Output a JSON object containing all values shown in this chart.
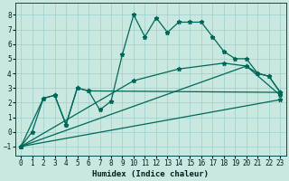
{
  "xlabel": "Humidex (Indice chaleur)",
  "bg_color": "#c8e8e0",
  "grid_color": "#9ecece",
  "line_color": "#006858",
  "xlim": [
    -0.5,
    23.5
  ],
  "ylim": [
    -1.6,
    8.8
  ],
  "xticks": [
    0,
    1,
    2,
    3,
    4,
    5,
    6,
    7,
    8,
    9,
    10,
    11,
    12,
    13,
    14,
    15,
    16,
    17,
    18,
    19,
    20,
    21,
    22,
    23
  ],
  "yticks": [
    -1,
    0,
    1,
    2,
    3,
    4,
    5,
    6,
    7,
    8
  ],
  "line1_x": [
    0,
    1,
    2,
    3,
    4,
    5,
    6,
    7,
    8,
    9,
    10,
    11,
    12,
    13,
    14,
    15,
    16,
    17,
    18,
    19,
    20,
    21,
    22,
    23
  ],
  "line1_y": [
    -1.0,
    0.0,
    2.3,
    2.5,
    0.5,
    3.0,
    2.8,
    1.5,
    2.1,
    5.3,
    8.0,
    6.5,
    7.8,
    6.8,
    7.5,
    7.5,
    7.5,
    6.5,
    5.5,
    5.0,
    5.0,
    4.0,
    3.8,
    2.7
  ],
  "line2_x": [
    0,
    2,
    3,
    4,
    5,
    6,
    23
  ],
  "line2_y": [
    -1.0,
    2.3,
    2.5,
    0.5,
    3.0,
    2.8,
    2.7
  ],
  "line3_x": [
    0,
    20,
    21,
    22,
    23
  ],
  "line3_y": [
    -1.0,
    4.5,
    4.0,
    3.8,
    2.7
  ],
  "line4_x": [
    0,
    23
  ],
  "line4_y": [
    -1.0,
    2.2
  ],
  "line5_x": [
    0,
    10,
    14,
    18,
    20,
    23
  ],
  "line5_y": [
    -1.0,
    3.5,
    4.3,
    4.7,
    4.5,
    2.5
  ],
  "figsize": [
    3.2,
    2.0
  ],
  "dpi": 100
}
